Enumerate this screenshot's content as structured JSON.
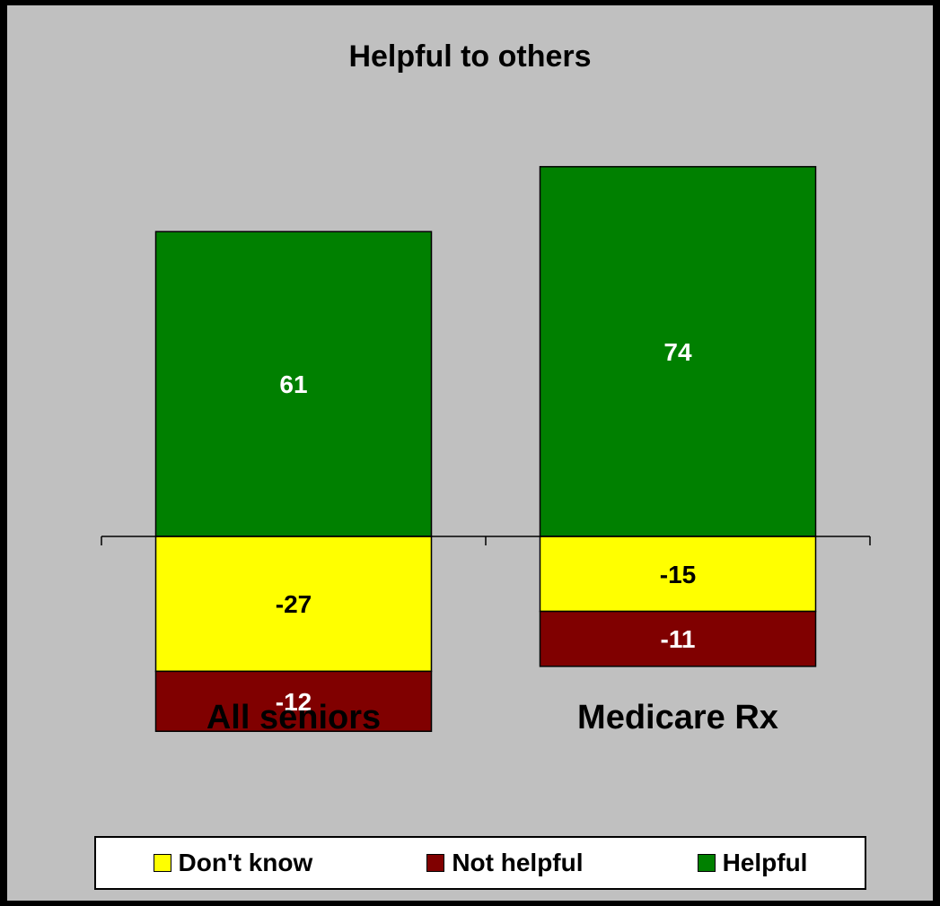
{
  "chart_data": {
    "type": "bar",
    "stacked": true,
    "title": "Helpful to others",
    "categories": [
      "All seniors",
      "Medicare Rx"
    ],
    "series": [
      {
        "name": "Helpful",
        "values": [
          61,
          74
        ],
        "color": "#008000",
        "label_color": "#ffffff"
      },
      {
        "name": "Don't know",
        "values": [
          -27,
          -15
        ],
        "color": "#ffff00",
        "label_color": "#000000"
      },
      {
        "name": "Not helpful",
        "values": [
          -12,
          -11
        ],
        "color": "#800000",
        "label_color": "#ffffff"
      }
    ],
    "legend_order": [
      "Don't know",
      "Not helpful",
      "Helpful"
    ],
    "ylim": [
      -40,
      80
    ],
    "grid": false,
    "legend": "bottom"
  }
}
